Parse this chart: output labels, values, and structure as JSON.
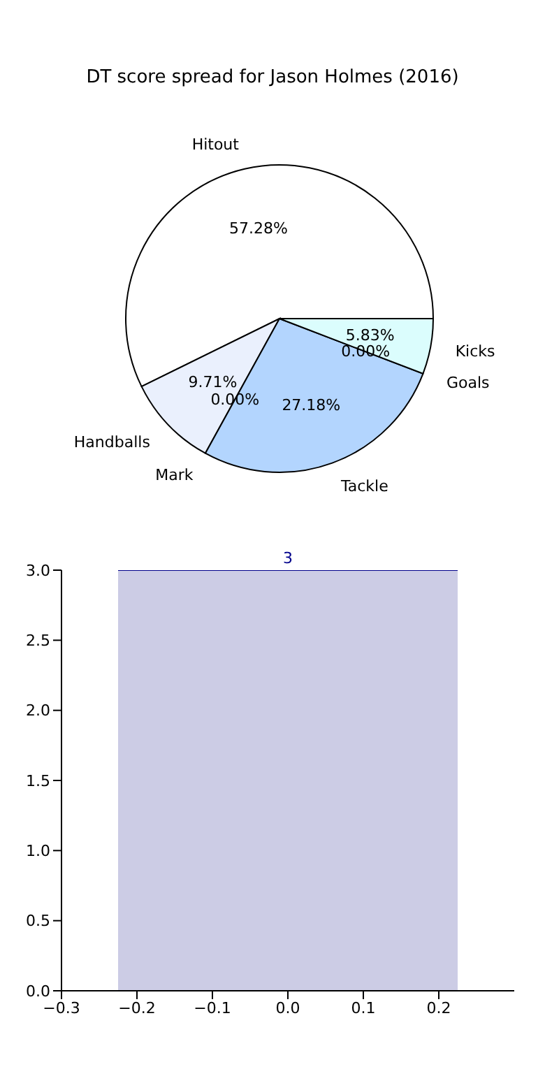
{
  "chart_data": [
    {
      "type": "pie",
      "title": "DT score spread for Jason Holmes (2016)",
      "categories": [
        "Hitout",
        "Handballs",
        "Mark",
        "Tackle",
        "Goals",
        "Kicks"
      ],
      "values": [
        57.28,
        9.71,
        0,
        27.18,
        0,
        5.83
      ],
      "colors": [
        "#ffffff",
        "#eaf0fd",
        "#c6d4f0",
        "#b3d5fe",
        "#c0cce8",
        "#dbfdfd"
      ],
      "value_labels": [
        "57.28%",
        "9.71%",
        "0.00%",
        "27.18%",
        "0.00%",
        "5.83%"
      ]
    },
    {
      "type": "histogram",
      "bins": [
        -0.225,
        0.225
      ],
      "values": [
        3
      ],
      "color": "#cccce5",
      "data_labels": true,
      "xlim": [
        -0.3,
        0.3
      ],
      "xticks": [
        {
          "value": -0.3,
          "label": "−0.3"
        },
        {
          "value": -0.2,
          "label": "−0.2"
        },
        {
          "value": -0.1,
          "label": "−0.1"
        },
        {
          "value": 0,
          "label": "0.0"
        },
        {
          "value": 0.1,
          "label": "0.1"
        },
        {
          "value": 0.2,
          "label": "0.2"
        }
      ],
      "ylim": [
        0,
        3
      ],
      "yticks": [
        {
          "value": 0,
          "label": "0.0"
        },
        {
          "value": 0.5,
          "label": "0.5"
        },
        {
          "value": 1,
          "label": "1.0"
        },
        {
          "value": 1.5,
          "label": "1.5"
        },
        {
          "value": 2,
          "label": "2.0"
        },
        {
          "value": 2.5,
          "label": "2.5"
        },
        {
          "value": 3,
          "label": "3.0"
        }
      ],
      "grid": false
    }
  ]
}
